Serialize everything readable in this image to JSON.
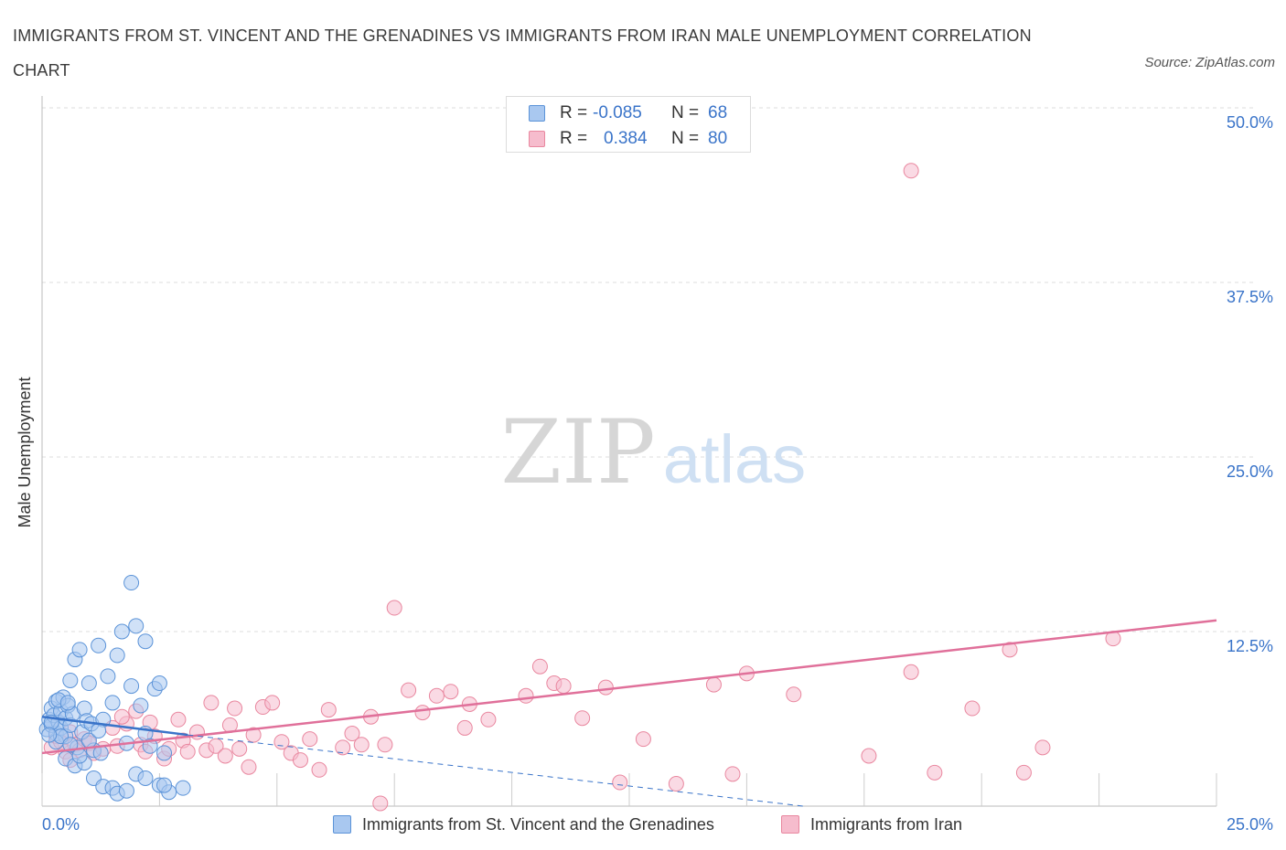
{
  "header": {
    "title": "IMMIGRANTS FROM ST. VINCENT AND THE GRENADINES VS IMMIGRANTS FROM IRAN MALE UNEMPLOYMENT CORRELATION CHART",
    "source": "Source: ZipAtlas.com"
  },
  "legend": {
    "rows": [
      {
        "r_label": "R =",
        "r_value": "-0.085",
        "n_label": "N =",
        "n_value": "68"
      },
      {
        "r_label": "R =",
        "r_value": "0.384",
        "n_label": "N =",
        "n_value": "80"
      }
    ]
  },
  "watermark": {
    "zip": "ZIP",
    "atlas": "atlas"
  },
  "colors": {
    "blue_fill": "#a9c8f0",
    "blue_stroke": "#5b93d8",
    "blue_line": "#3a74c9",
    "pink_fill": "#f6bccd",
    "pink_stroke": "#e9879f",
    "pink_line": "#e0709a",
    "tick_text": "#3a74c9",
    "grid": "#dddddd"
  },
  "chart_data": {
    "type": "scatter",
    "title": "IMMIGRANTS FROM ST. VINCENT AND THE GRENADINES VS IMMIGRANTS FROM IRAN MALE UNEMPLOYMENT CORRELATION CHART",
    "xlabel": "",
    "ylabel": "Male Unemployment",
    "xlim": [
      0,
      25
    ],
    "ylim": [
      0,
      50
    ],
    "x_tick_labels": [
      "0.0%",
      "25.0%"
    ],
    "y_ticks": [
      12.5,
      25.0,
      37.5,
      50.0
    ],
    "y_tick_labels": [
      "12.5%",
      "25.0%",
      "37.5%",
      "50.0%"
    ],
    "grid": true,
    "legend_position": "top-center",
    "series": [
      {
        "name": "Immigrants from St. Vincent and the Grenadines",
        "color": "#a9c8f0",
        "r": -0.085,
        "n": 68,
        "trend": {
          "x": [
            0,
            3.1
          ],
          "y": [
            6.4,
            5.1
          ],
          "dashed_extension": {
            "x": [
              3.1,
              16.2
            ],
            "y": [
              5.1,
              0.0
            ]
          }
        },
        "points": [
          [
            0.1,
            5.5
          ],
          [
            0.15,
            6.2
          ],
          [
            0.2,
            7.0
          ],
          [
            0.2,
            5.8
          ],
          [
            0.25,
            6.5
          ],
          [
            0.3,
            7.5
          ],
          [
            0.3,
            5.2
          ],
          [
            0.35,
            6.0
          ],
          [
            0.4,
            6.8
          ],
          [
            0.4,
            5.6
          ],
          [
            0.45,
            7.8
          ],
          [
            0.5,
            6.3
          ],
          [
            0.5,
            5.0
          ],
          [
            0.55,
            7.2
          ],
          [
            0.6,
            5.8
          ],
          [
            0.6,
            9.0
          ],
          [
            0.65,
            6.6
          ],
          [
            0.7,
            10.5
          ],
          [
            0.75,
            4.2
          ],
          [
            0.8,
            11.2
          ],
          [
            0.85,
            5.3
          ],
          [
            0.9,
            7.0
          ],
          [
            0.95,
            6.1
          ],
          [
            1.0,
            8.8
          ],
          [
            1.05,
            5.9
          ],
          [
            1.1,
            4.0
          ],
          [
            1.2,
            11.5
          ],
          [
            1.25,
            3.8
          ],
          [
            1.3,
            6.2
          ],
          [
            1.4,
            9.3
          ],
          [
            1.5,
            7.4
          ],
          [
            1.6,
            10.8
          ],
          [
            1.7,
            12.5
          ],
          [
            1.8,
            4.5
          ],
          [
            1.9,
            8.6
          ],
          [
            2.0,
            12.9
          ],
          [
            2.1,
            7.2
          ],
          [
            2.2,
            5.2
          ],
          [
            2.4,
            8.4
          ],
          [
            2.5,
            8.8
          ],
          [
            2.6,
            3.8
          ],
          [
            0.3,
            4.6
          ],
          [
            0.5,
            3.4
          ],
          [
            0.7,
            2.9
          ],
          [
            0.9,
            3.1
          ],
          [
            1.1,
            2.0
          ],
          [
            1.3,
            1.4
          ],
          [
            1.5,
            1.3
          ],
          [
            1.6,
            0.9
          ],
          [
            1.8,
            1.1
          ],
          [
            2.0,
            2.3
          ],
          [
            2.2,
            2.0
          ],
          [
            0.2,
            6.0
          ],
          [
            0.4,
            5.0
          ],
          [
            0.6,
            4.4
          ],
          [
            0.8,
            3.6
          ],
          [
            1.0,
            4.7
          ],
          [
            1.2,
            5.4
          ],
          [
            2.3,
            4.3
          ],
          [
            1.9,
            16.0
          ],
          [
            2.5,
            1.5
          ],
          [
            3.0,
            1.3
          ],
          [
            2.7,
            1.0
          ],
          [
            2.6,
            1.5
          ],
          [
            0.35,
            7.6
          ],
          [
            0.55,
            7.4
          ],
          [
            0.15,
            5.1
          ],
          [
            2.2,
            11.8
          ]
        ]
      },
      {
        "name": "Immigrants from Iran",
        "color": "#f6bccd",
        "r": 0.384,
        "n": 80,
        "trend": {
          "x": [
            0,
            25
          ],
          "y": [
            3.8,
            13.3
          ]
        },
        "points": [
          [
            0.2,
            4.2
          ],
          [
            0.3,
            5.0
          ],
          [
            0.4,
            4.6
          ],
          [
            0.5,
            3.9
          ],
          [
            0.6,
            5.3
          ],
          [
            0.7,
            4.4
          ],
          [
            0.8,
            4.0
          ],
          [
            0.9,
            4.8
          ],
          [
            1.0,
            4.5
          ],
          [
            1.1,
            3.8
          ],
          [
            1.3,
            4.1
          ],
          [
            1.5,
            5.6
          ],
          [
            1.6,
            4.3
          ],
          [
            1.8,
            5.9
          ],
          [
            2.0,
            6.8
          ],
          [
            2.1,
            4.4
          ],
          [
            2.2,
            3.9
          ],
          [
            2.4,
            5.0
          ],
          [
            2.6,
            3.4
          ],
          [
            2.7,
            4.1
          ],
          [
            2.9,
            6.2
          ],
          [
            3.0,
            4.7
          ],
          [
            3.1,
            3.9
          ],
          [
            3.3,
            5.3
          ],
          [
            3.5,
            4.0
          ],
          [
            3.7,
            4.3
          ],
          [
            3.9,
            3.6
          ],
          [
            4.0,
            5.8
          ],
          [
            4.1,
            7.0
          ],
          [
            4.2,
            4.1
          ],
          [
            4.4,
            2.8
          ],
          [
            4.5,
            5.1
          ],
          [
            4.7,
            7.1
          ],
          [
            4.9,
            7.4
          ],
          [
            5.1,
            4.6
          ],
          [
            5.3,
            3.8
          ],
          [
            5.5,
            3.3
          ],
          [
            5.7,
            4.8
          ],
          [
            5.9,
            2.6
          ],
          [
            6.1,
            6.9
          ],
          [
            6.4,
            4.2
          ],
          [
            6.6,
            5.2
          ],
          [
            6.8,
            4.4
          ],
          [
            7.0,
            6.4
          ],
          [
            7.3,
            4.4
          ],
          [
            7.8,
            8.3
          ],
          [
            8.1,
            6.7
          ],
          [
            8.4,
            7.9
          ],
          [
            8.7,
            8.2
          ],
          [
            9.1,
            7.3
          ],
          [
            9.5,
            6.2
          ],
          [
            10.3,
            7.9
          ],
          [
            10.6,
            10.0
          ],
          [
            10.9,
            8.8
          ],
          [
            11.1,
            8.6
          ],
          [
            11.5,
            6.3
          ],
          [
            12.0,
            8.5
          ],
          [
            12.8,
            4.8
          ],
          [
            13.5,
            1.6
          ],
          [
            14.3,
            8.7
          ],
          [
            15.0,
            9.5
          ],
          [
            16.0,
            8.0
          ],
          [
            17.6,
            3.6
          ],
          [
            18.5,
            9.6
          ],
          [
            19.0,
            2.4
          ],
          [
            19.8,
            7.0
          ],
          [
            20.6,
            11.2
          ],
          [
            20.9,
            2.4
          ],
          [
            21.3,
            4.2
          ],
          [
            22.8,
            12.0
          ],
          [
            7.5,
            14.2
          ],
          [
            18.5,
            45.5
          ],
          [
            12.3,
            1.7
          ],
          [
            14.7,
            2.3
          ],
          [
            9.0,
            5.6
          ],
          [
            3.6,
            7.4
          ],
          [
            2.3,
            6.0
          ],
          [
            1.7,
            6.4
          ],
          [
            0.6,
            3.3
          ],
          [
            7.2,
            0.2
          ]
        ]
      }
    ]
  },
  "bottom_legend": {
    "series1": "Immigrants from St. Vincent and the Grenadines",
    "series2": "Immigrants from Iran"
  }
}
